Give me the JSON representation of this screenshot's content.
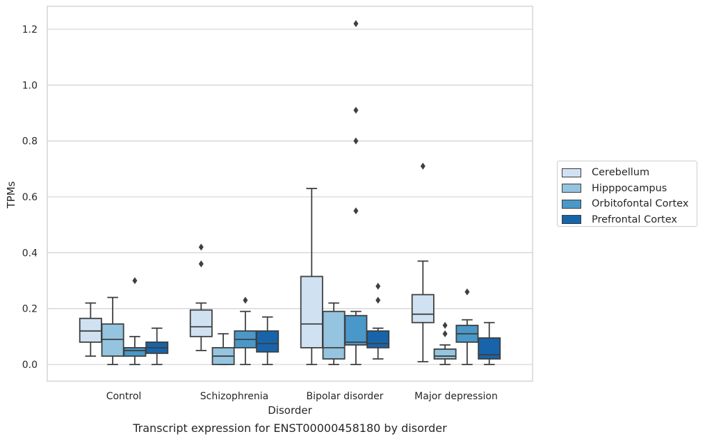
{
  "chart_data": {
    "type": "box",
    "caption": "Transcript expression for ENST00000458180 by disorder",
    "xlabel": "Disorder",
    "ylabel": "TPMs",
    "ylim": [
      -0.06,
      1.28
    ],
    "yticks": [
      "0.0",
      "0.2",
      "0.4",
      "0.6",
      "0.8",
      "1.0",
      "1.2"
    ],
    "ytick_values": [
      0,
      0.2,
      0.4,
      0.6,
      0.8,
      1.0,
      1.2
    ],
    "grid": "horizontal",
    "legend_position": "right",
    "categories": [
      "Control",
      "Schizophrenia",
      "Bipolar disorder",
      "Major depression"
    ],
    "series": [
      {
        "name": "Cerebellum",
        "color": "#d0e1f2",
        "boxes": [
          {
            "whislo": 0.03,
            "q1": 0.08,
            "med": 0.12,
            "q3": 0.165,
            "whishi": 0.22,
            "fliers": []
          },
          {
            "whislo": 0.05,
            "q1": 0.1,
            "med": 0.135,
            "q3": 0.195,
            "whishi": 0.22,
            "fliers": [
              0.36,
              0.42
            ]
          },
          {
            "whislo": 0.0,
            "q1": 0.06,
            "med": 0.145,
            "q3": 0.315,
            "whishi": 0.63,
            "fliers": []
          },
          {
            "whislo": 0.01,
            "q1": 0.15,
            "med": 0.18,
            "q3": 0.25,
            "whishi": 0.37,
            "fliers": [
              0.71
            ]
          }
        ]
      },
      {
        "name": "Hipppocampus",
        "color": "#94c4df",
        "boxes": [
          {
            "whislo": 0.0,
            "q1": 0.03,
            "med": 0.09,
            "q3": 0.145,
            "whishi": 0.24,
            "fliers": []
          },
          {
            "whislo": 0.0,
            "q1": 0.0,
            "med": 0.03,
            "q3": 0.06,
            "whishi": 0.11,
            "fliers": []
          },
          {
            "whislo": 0.0,
            "q1": 0.02,
            "med": 0.06,
            "q3": 0.19,
            "whishi": 0.22,
            "fliers": []
          },
          {
            "whislo": 0.0,
            "q1": 0.02,
            "med": 0.03,
            "q3": 0.055,
            "whishi": 0.07,
            "fliers": [
              0.11,
              0.14
            ]
          }
        ]
      },
      {
        "name": "Orbitofontal Cortex",
        "color": "#4a98c9",
        "boxes": [
          {
            "whislo": 0.0,
            "q1": 0.03,
            "med": 0.05,
            "q3": 0.06,
            "whishi": 0.1,
            "fliers": [
              0.3
            ]
          },
          {
            "whislo": 0.0,
            "q1": 0.06,
            "med": 0.09,
            "q3": 0.12,
            "whishi": 0.19,
            "fliers": [
              0.23
            ]
          },
          {
            "whislo": 0.0,
            "q1": 0.07,
            "med": 0.08,
            "q3": 0.175,
            "whishi": 0.19,
            "fliers": [
              0.55,
              0.8,
              0.91,
              1.22
            ]
          },
          {
            "whislo": 0.0,
            "q1": 0.08,
            "med": 0.11,
            "q3": 0.14,
            "whishi": 0.16,
            "fliers": [
              0.26
            ]
          }
        ]
      },
      {
        "name": "Prefrontal Cortex",
        "color": "#1764ab",
        "boxes": [
          {
            "whislo": 0.0,
            "q1": 0.04,
            "med": 0.06,
            "q3": 0.08,
            "whishi": 0.13,
            "fliers": []
          },
          {
            "whislo": 0.0,
            "q1": 0.045,
            "med": 0.075,
            "q3": 0.12,
            "whishi": 0.17,
            "fliers": []
          },
          {
            "whislo": 0.02,
            "q1": 0.06,
            "med": 0.075,
            "q3": 0.12,
            "whishi": 0.13,
            "fliers": [
              0.23,
              0.28
            ]
          },
          {
            "whislo": 0.0,
            "q1": 0.02,
            "med": 0.035,
            "q3": 0.095,
            "whishi": 0.15,
            "fliers": []
          }
        ]
      }
    ]
  }
}
